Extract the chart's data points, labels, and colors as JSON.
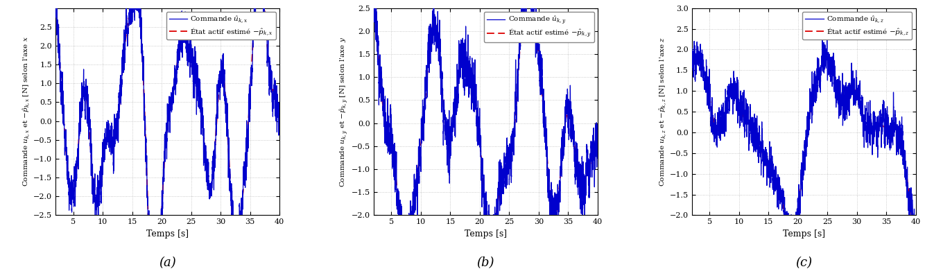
{
  "figsize": [
    13.34,
    3.88
  ],
  "dpi": 100,
  "xlim": [
    2,
    40
  ],
  "xticks": [
    5,
    10,
    15,
    20,
    25,
    30,
    35,
    40
  ],
  "xlabel": "Temps [s]",
  "panels": [
    {
      "label": "(a)",
      "ylim": [
        -2.5,
        3.0
      ],
      "yticks": [
        -2.5,
        -2.0,
        -1.5,
        -1.0,
        -0.5,
        0.0,
        0.5,
        1.0,
        1.5,
        2.0,
        2.5
      ],
      "ylabel": "Commande $u_{k,x}$ et $-\\hat{p}_{k,x}$ [N] selon l'axe $x$",
      "legend1": "Commande $\\hat{u}_{k,x}$",
      "legend2": "État actif estimé $-\\hat{p}_{k,x}$",
      "seed": 10,
      "freqs": [
        0.55,
        0.85,
        1.3,
        1.9
      ],
      "amps": [
        1.0,
        0.9,
        0.5,
        0.25
      ],
      "phases": [
        0.3,
        1.1,
        -0.5,
        0.8
      ],
      "amp_scale": 2.1,
      "noise_std": 0.18,
      "noise_lp": 5
    },
    {
      "label": "(b)",
      "ylim": [
        -2.0,
        2.5
      ],
      "yticks": [
        -2.0,
        -1.5,
        -1.0,
        -0.5,
        0.0,
        0.5,
        1.0,
        1.5,
        2.0,
        2.5
      ],
      "ylabel": "Commande $u_{k,y}$ et $-\\hat{p}_{k,y}$ [N] selon l'axe $y$",
      "legend1": "Commande $\\hat{u}_{k,y}$",
      "legend2": "État actif estimé $-\\hat{p}_{k,y}$",
      "seed": 20,
      "freqs": [
        0.45,
        0.75,
        1.1,
        1.7
      ],
      "amps": [
        1.0,
        0.7,
        0.4,
        0.2
      ],
      "phases": [
        1.2,
        -0.3,
        0.9,
        -1.0
      ],
      "amp_scale": 1.65,
      "noise_std": 0.18,
      "noise_lp": 5
    },
    {
      "label": "(c)",
      "ylim": [
        -2.0,
        3.0
      ],
      "yticks": [
        -2.0,
        -1.5,
        -1.0,
        -0.5,
        0.0,
        0.5,
        1.0,
        1.5,
        2.0,
        2.5,
        3.0
      ],
      "ylabel": "Commande $u_{k,z}$ et $-\\hat{p}_{k,z}$ [N] selon l'axe $z$",
      "legend1": "Commande $\\hat{u}_{k,z}$",
      "legend2": "État actif estimé $-\\hat{p}_{k,z}$",
      "seed": 30,
      "freqs": [
        0.28,
        0.55,
        0.9,
        1.5
      ],
      "amps": [
        1.0,
        0.6,
        0.3,
        0.15
      ],
      "phases": [
        0.0,
        0.8,
        -0.4,
        1.2
      ],
      "amp_scale": 1.4,
      "noise_std": 0.15,
      "noise_lp": 5
    }
  ],
  "blue_color": "#0000CD",
  "red_color": "#DD0000",
  "bg_color": "#FFFFFF",
  "grid_color": "#AAAAAA",
  "grid_alpha": 0.8
}
